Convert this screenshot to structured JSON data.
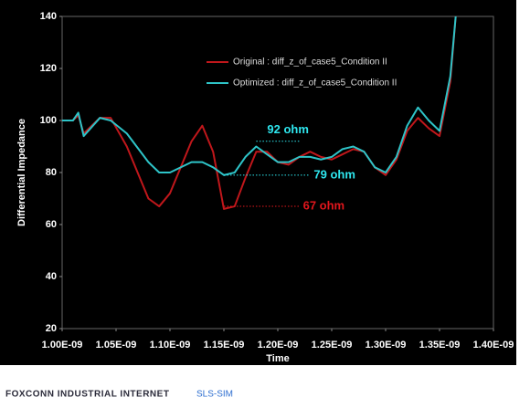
{
  "chart_data": {
    "type": "line",
    "xlabel": "Time",
    "ylabel": "Differential Impedance",
    "xlim": [
      1e-09,
      1.4e-09
    ],
    "xticks": [
      {
        "value": 1e-09,
        "label": "1.00E-09"
      },
      {
        "value": 1.05e-09,
        "label": "1.05E-09"
      },
      {
        "value": 1.1e-09,
        "label": "1.10E-09"
      },
      {
        "value": 1.15e-09,
        "label": "1.15E-09"
      },
      {
        "value": 1.2e-09,
        "label": "1.20E-09"
      },
      {
        "value": 1.25e-09,
        "label": "1.25E-09"
      },
      {
        "value": 1.3e-09,
        "label": "1.30E-09"
      },
      {
        "value": 1.35e-09,
        "label": "1.35E-09"
      },
      {
        "value": 1.4e-09,
        "label": "1.40E-09"
      }
    ],
    "ylim": [
      20,
      140
    ],
    "yticks": [
      20,
      40,
      60,
      80,
      100,
      120,
      140
    ],
    "grid": false,
    "legend": "upper center",
    "x": [
      1e-09,
      1.01e-09,
      1.015e-09,
      1.02e-09,
      1.035e-09,
      1.045e-09,
      1.06e-09,
      1.08e-09,
      1.09e-09,
      1.1e-09,
      1.12e-09,
      1.13e-09,
      1.14e-09,
      1.15e-09,
      1.16e-09,
      1.17e-09,
      1.18e-09,
      1.19e-09,
      1.2e-09,
      1.21e-09,
      1.22e-09,
      1.23e-09,
      1.24e-09,
      1.25e-09,
      1.26e-09,
      1.27e-09,
      1.28e-09,
      1.29e-09,
      1.3e-09,
      1.31e-09,
      1.32e-09,
      1.33e-09,
      1.34e-09,
      1.35e-09,
      1.36e-09,
      1.365e-09
    ],
    "series": [
      {
        "name": "Original : diff_z_of_case5_Condition II",
        "color": "#c0171b",
        "values": [
          100,
          100,
          102,
          95,
          101,
          101,
          90,
          70,
          67,
          72,
          92,
          98,
          88,
          66,
          67,
          78,
          88,
          88,
          84,
          83,
          86,
          88,
          86,
          85,
          87,
          89,
          88,
          82,
          79,
          85,
          96,
          101,
          97,
          94,
          115,
          140
        ]
      },
      {
        "name": "Optimized : diff_z_of_case5_Condition II",
        "color": "#2ec4c8",
        "values": [
          100,
          100,
          103,
          94,
          101,
          100,
          95,
          84,
          80,
          80,
          84,
          84,
          82,
          79,
          80,
          86,
          90,
          87,
          84,
          84,
          86,
          86,
          85,
          86,
          89,
          90,
          88,
          82,
          80,
          86,
          98,
          105,
          100,
          96,
          117,
          140
        ]
      }
    ],
    "annotations": [
      {
        "text": "92 ohm",
        "color": "#2ee6ee",
        "value": 92,
        "x_from": 1.18e-09,
        "x_to": 1.22e-09
      },
      {
        "text": "79 ohm",
        "color": "#2ee6ee",
        "value": 79,
        "x_from": 1.15e-09,
        "x_to": 1.23e-09
      },
      {
        "text": "67 ohm",
        "color": "#e0161c",
        "value": 67,
        "x_from": 1.15e-09,
        "x_to": 1.22e-09
      }
    ]
  },
  "footer": {
    "brand": "FOXCONN INDUSTRIAL INTERNET",
    "product": "SLS-SIM"
  }
}
